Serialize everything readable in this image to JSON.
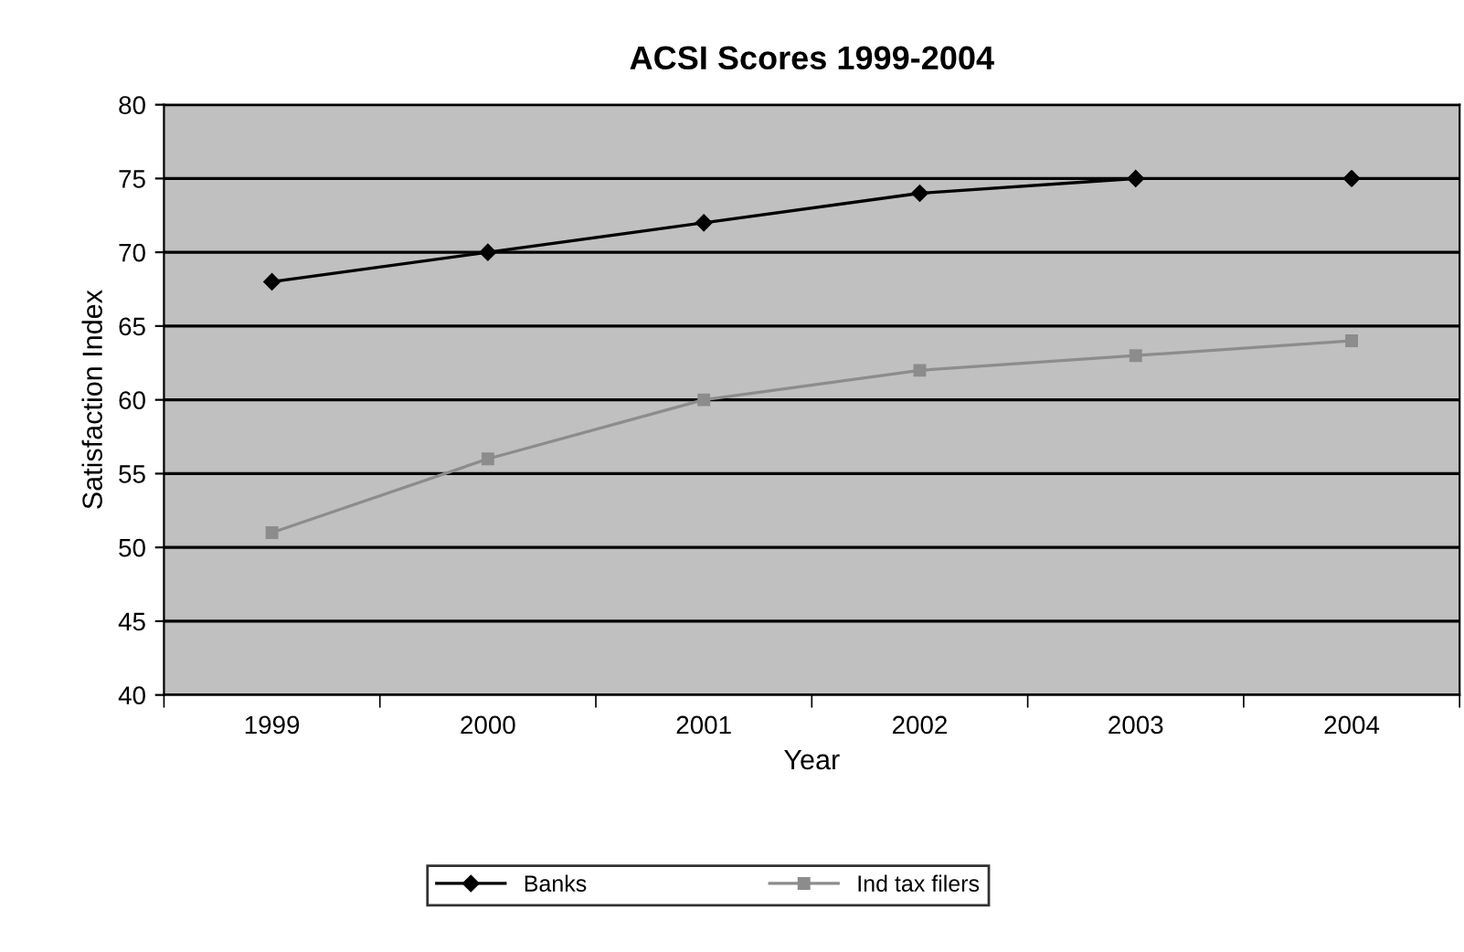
{
  "chart_data": {
    "type": "line",
    "title": "ACSI Scores 1999-2004",
    "xlabel": "Year",
    "ylabel": "Satisfaction Index",
    "categories": [
      "1999",
      "2000",
      "2001",
      "2002",
      "2003",
      "2004"
    ],
    "series": [
      {
        "name": "Banks",
        "color": "#000000",
        "marker": "diamond",
        "values": [
          68,
          70,
          72,
          74,
          75,
          null
        ]
      },
      {
        "type": "scatter",
        "color": "#000000",
        "marker": "diamond",
        "values": [
          null,
          null,
          null,
          null,
          null,
          75
        ]
      },
      {
        "name": "Ind tax filers",
        "color": "#8c8c8c",
        "marker": "square",
        "values": [
          51,
          56,
          60,
          62,
          63,
          64
        ]
      }
    ],
    "ylim": [
      40,
      80
    ],
    "yticks": [
      40,
      45,
      50,
      55,
      60,
      65,
      70,
      75,
      80
    ],
    "grid": "y",
    "legend": "bottom"
  }
}
